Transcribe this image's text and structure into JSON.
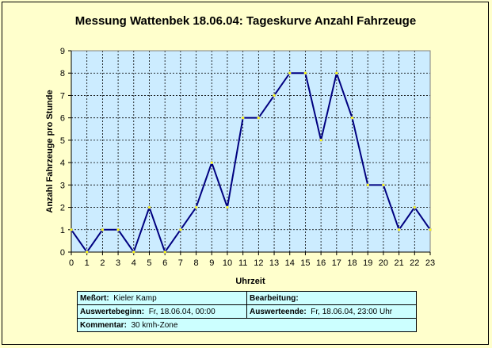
{
  "chart_data": {
    "type": "line",
    "title": "Messung Wattenbek 18.06.04: Tageskurve Anzahl Fahrzeuge",
    "xlabel": "Uhrzeit",
    "ylabel": "Anzahl Fahrzeuge pro Stunde",
    "x": [
      0,
      1,
      2,
      3,
      4,
      5,
      6,
      7,
      8,
      9,
      10,
      11,
      12,
      13,
      14,
      15,
      16,
      17,
      18,
      19,
      20,
      21,
      22,
      23
    ],
    "y": [
      1,
      0,
      1,
      1,
      0,
      2,
      0,
      1,
      2,
      4,
      2,
      6,
      6,
      7,
      8,
      8,
      5,
      8,
      6,
      3,
      3,
      1,
      2,
      1
    ],
    "xlim": [
      0,
      23
    ],
    "ylim": [
      0,
      9
    ],
    "grid": true,
    "colors": {
      "plot_bg": "#ccecff",
      "line": "#000080",
      "grid": "#000000"
    }
  },
  "info": {
    "messort_label": "Meßort:",
    "messort_value": "Kieler Kamp",
    "bearbeitung_label": "Bearbeitung:",
    "bearbeitung_value": "",
    "beginn_label": "Auswertebeginn:",
    "beginn_value": "Fr, 18.06.04, 00:00",
    "ende_label": "Auswerteende:",
    "ende_value": "Fr, 18.06.04, 23:00 Uhr",
    "kommentar_label": "Kommentar:",
    "kommentar_value": "30 kmh-Zone"
  }
}
